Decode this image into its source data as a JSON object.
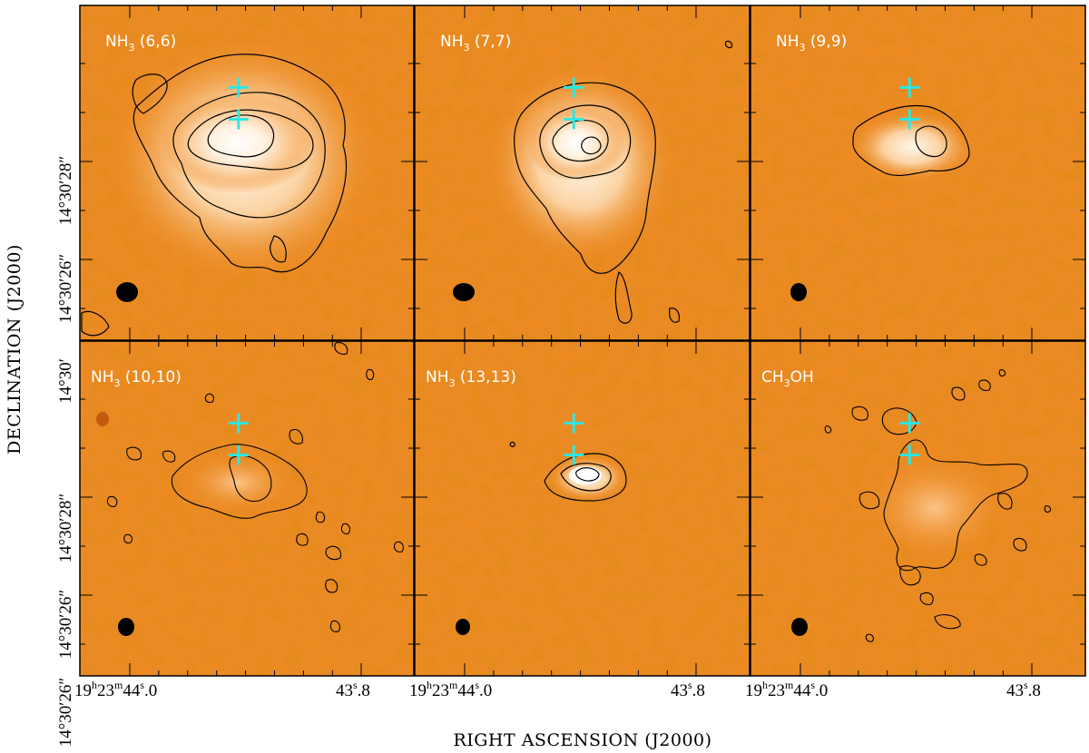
{
  "figure": {
    "xlabel": "RIGHT ASCENSION (J2000)",
    "ylabel": "DECLINATION (J2000)",
    "ra_ticks": [
      {
        "h": "19",
        "m": "23",
        "s": "44",
        "frac": "0",
        "value": "19h23m44.0s"
      },
      {
        "s": "43",
        "frac": "8",
        "value": "43.8s"
      }
    ],
    "dec_ticks": [
      {
        "deg": "14°30′28″",
        "value": "14°30'28\""
      },
      {
        "deg": "14°30′26″",
        "value": "14°30'26\""
      }
    ],
    "colors": {
      "background": "#f08a24",
      "emission_peak": "#fffaf2",
      "contour": "#000000",
      "marker": "#2ee6e6",
      "beam": "#000000"
    }
  },
  "panels": [
    {
      "id": "p1",
      "label": "NH",
      "sub": "3",
      "suffix": " (6,6)",
      "levels": 4
    },
    {
      "id": "p2",
      "label": "NH",
      "sub": "3",
      "suffix": " (7,7)",
      "levels": 3
    },
    {
      "id": "p3",
      "label": "NH",
      "sub": "3",
      "suffix": " (9,9)",
      "levels": 2
    },
    {
      "id": "p4",
      "label": "NH",
      "sub": "3",
      "suffix": " (10,10)",
      "levels": 2
    },
    {
      "id": "p5",
      "label": "NH",
      "sub": "3",
      "suffix": " (13,13)",
      "levels": 3
    },
    {
      "id": "p6",
      "label": "CH",
      "sub": "3",
      "suffix": "OH",
      "levels": 1
    }
  ],
  "markers": [
    {
      "name": "north-source",
      "dra_frac": 0.475,
      "ddec_frac": 0.245
    },
    {
      "name": "south-source",
      "dra_frac": 0.475,
      "ddec_frac": 0.34
    }
  ]
}
